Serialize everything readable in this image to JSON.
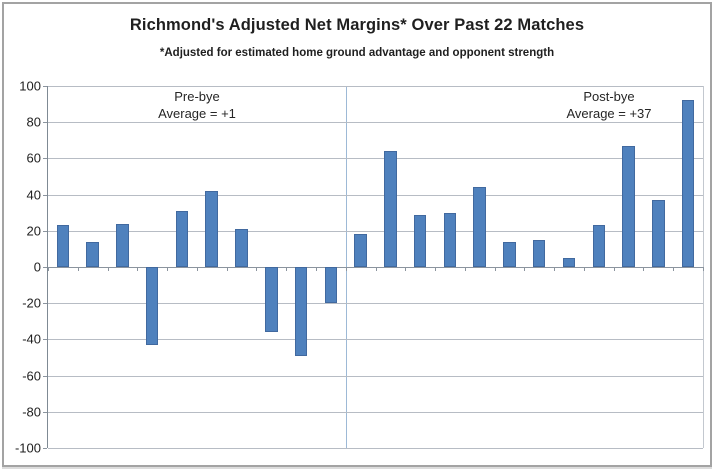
{
  "chart_data": {
    "type": "bar",
    "title": "Richmond's Adjusted Net Margins* Over Past 22 Matches",
    "subtitle": "*Adjusted for estimated home ground advantage and opponent strength",
    "xlabel": "",
    "ylabel": "",
    "x_tick_labels_visible": false,
    "num_matches": 22,
    "values": [
      23,
      14,
      24,
      -43,
      31,
      42,
      21,
      -36,
      -49,
      -20,
      18,
      64,
      29,
      30,
      44,
      14,
      15,
      5,
      23,
      67,
      37,
      92
    ],
    "ylim": [
      -100,
      100
    ],
    "y_ticks": [
      100,
      80,
      60,
      40,
      20,
      0,
      -20,
      -40,
      -60,
      -80,
      -100
    ],
    "grid": true,
    "legend": "none",
    "divider": {
      "after_category": 10,
      "meaning": "bye break between pre-bye and post-bye matches",
      "color": "#9db9d6"
    },
    "annotations": [
      {
        "id": "pre-bye",
        "lines": [
          "Pre-bye",
          "Average = +1"
        ]
      },
      {
        "id": "post-bye",
        "lines": [
          "Post-bye",
          "Average = +37"
        ]
      }
    ],
    "colors": {
      "bar_fill": "#4f81bd",
      "bar_border": "#41699f",
      "gridline": "#b7bcc4",
      "axis": "#8b949e",
      "frame_border": "#a3a3a3",
      "text": "#1f1f1f"
    }
  }
}
